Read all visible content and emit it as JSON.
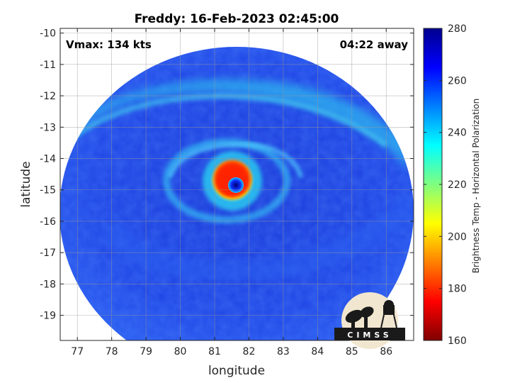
{
  "title": "Freddy: 16-Feb-2023 02:45:00",
  "annotations": {
    "vmax": "Vmax: 134 kts",
    "away": "04:22 away"
  },
  "logo": {
    "text": "CIMSS"
  },
  "colors": {
    "background_blue": "#1f3fe0",
    "cold_band": "#2fc0ee",
    "eyewall_red": "#ff2a00",
    "eye_blue": "#1840ff",
    "axis": "#000000"
  },
  "chart_data": {
    "type": "heatmap",
    "title": "Freddy: 16-Feb-2023 02:45:00",
    "xlabel": "longitude",
    "ylabel": "latitude",
    "xlim": [
      76.5,
      86.8
    ],
    "ylim": [
      -19.8,
      -9.85
    ],
    "xticks": [
      77,
      78,
      79,
      80,
      81,
      82,
      83,
      84,
      85,
      86
    ],
    "yticks": [
      -10,
      -11,
      -12,
      -13,
      -14,
      -15,
      -16,
      -17,
      -18,
      -19
    ],
    "grid": true,
    "colorbar": {
      "label": "Brightness Temp - Horizontal Polarization",
      "range": [
        160,
        280
      ],
      "ticks": [
        280,
        260,
        240,
        220,
        200,
        180,
        160
      ],
      "colormap": "jet"
    },
    "eye_center": {
      "lon": 81.6,
      "lat": -14.85
    }
  }
}
